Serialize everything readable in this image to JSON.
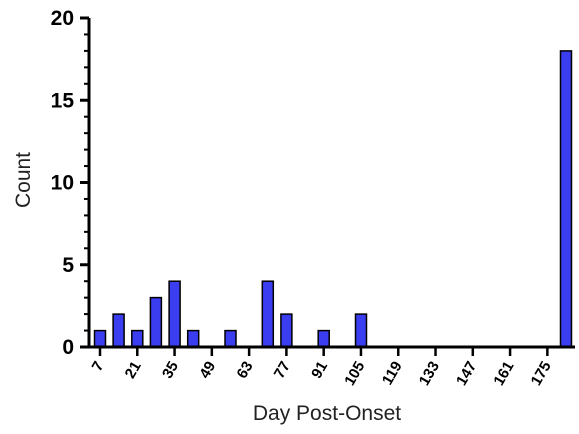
{
  "chart_data": {
    "type": "bar",
    "title": "",
    "xlabel": "Day Post-Onset",
    "ylabel": "Count",
    "ylim": [
      0,
      20
    ],
    "yticks": [
      0,
      5,
      10,
      15,
      20
    ],
    "xlim": [
      0,
      182
    ],
    "xticks": [
      7,
      21,
      35,
      49,
      63,
      77,
      91,
      105,
      119,
      133,
      147,
      161,
      175
    ],
    "bar_color": "#3a3df0",
    "bar_edge_color": "#000000",
    "bars": [
      {
        "x": 7,
        "value": 1
      },
      {
        "x": 14,
        "value": 2
      },
      {
        "x": 21,
        "value": 1
      },
      {
        "x": 28,
        "value": 3
      },
      {
        "x": 35,
        "value": 4
      },
      {
        "x": 42,
        "value": 1
      },
      {
        "x": 56,
        "value": 1
      },
      {
        "x": 70,
        "value": 4
      },
      {
        "x": 77,
        "value": 2
      },
      {
        "x": 91,
        "value": 1
      },
      {
        "x": 105,
        "value": 2
      },
      {
        "x": 182,
        "value": 18
      }
    ]
  }
}
